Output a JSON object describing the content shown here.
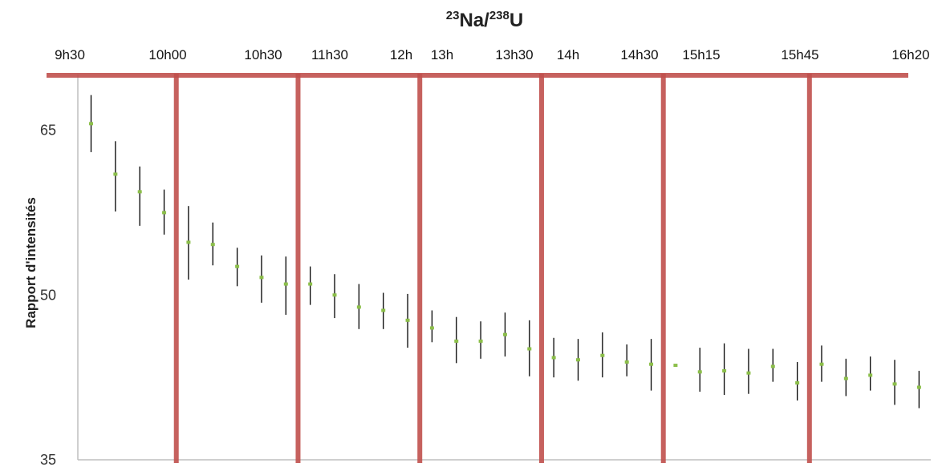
{
  "chart_data": {
    "type": "scatter",
    "title": {
      "sup1": "23",
      "el1": "Na/",
      "sup2": "238",
      "el2": "U"
    },
    "ylabel": "Rapport d'intensités",
    "xlabel": "",
    "ylim": [
      35,
      70
    ],
    "yticks": [
      35,
      50,
      65
    ],
    "top_ticks": [
      "9h30",
      "10h00",
      "10h30",
      "11h30",
      "12h",
      "13h",
      "13h30",
      "14h",
      "14h30",
      "15h15",
      "15h45",
      "16h20"
    ],
    "grid": false,
    "colors": {
      "points": "#8cbf4a",
      "errorbars": "#000000",
      "markers": "#c0504d",
      "axis": "#bfbfbf"
    },
    "points": [
      {
        "i": 1,
        "y": 65.6,
        "lo": 63.0,
        "hi": 68.2
      },
      {
        "i": 2,
        "y": 61.0,
        "lo": 57.6,
        "hi": 64.0
      },
      {
        "i": 3,
        "y": 59.4,
        "lo": 56.3,
        "hi": 61.7
      },
      {
        "i": 4,
        "y": 57.5,
        "lo": 55.5,
        "hi": 59.6
      },
      {
        "i": 5,
        "y": 54.8,
        "lo": 51.4,
        "hi": 58.1
      },
      {
        "i": 6,
        "y": 54.6,
        "lo": 52.7,
        "hi": 56.6
      },
      {
        "i": 7,
        "y": 52.6,
        "lo": 50.8,
        "hi": 54.3
      },
      {
        "i": 8,
        "y": 51.6,
        "lo": 49.3,
        "hi": 53.6
      },
      {
        "i": 9,
        "y": 51.0,
        "lo": 48.2,
        "hi": 53.5
      },
      {
        "i": 10,
        "y": 51.0,
        "lo": 49.1,
        "hi": 52.6
      },
      {
        "i": 11,
        "y": 50.0,
        "lo": 47.9,
        "hi": 51.9
      },
      {
        "i": 12,
        "y": 48.9,
        "lo": 46.9,
        "hi": 51.0
      },
      {
        "i": 13,
        "y": 48.6,
        "lo": 46.9,
        "hi": 50.2
      },
      {
        "i": 14,
        "y": 47.7,
        "lo": 45.2,
        "hi": 50.1
      },
      {
        "i": 15,
        "y": 47.0,
        "lo": 45.7,
        "hi": 48.6
      },
      {
        "i": 16,
        "y": 45.8,
        "lo": 43.8,
        "hi": 48.0
      },
      {
        "i": 17,
        "y": 45.8,
        "lo": 44.2,
        "hi": 47.6
      },
      {
        "i": 18,
        "y": 46.4,
        "lo": 44.4,
        "hi": 48.4
      },
      {
        "i": 19,
        "y": 45.1,
        "lo": 42.6,
        "hi": 47.7
      },
      {
        "i": 20,
        "y": 44.3,
        "lo": 42.5,
        "hi": 46.1
      },
      {
        "i": 21,
        "y": 44.1,
        "lo": 42.2,
        "hi": 46.0
      },
      {
        "i": 22,
        "y": 44.5,
        "lo": 42.5,
        "hi": 46.6
      },
      {
        "i": 23,
        "y": 43.9,
        "lo": 42.6,
        "hi": 45.5
      },
      {
        "i": 24,
        "y": 43.7,
        "lo": 41.3,
        "hi": 46.0
      },
      {
        "i": 25,
        "y": 43.6,
        "lo": 43.6,
        "hi": 43.6
      },
      {
        "i": 26,
        "y": 43.0,
        "lo": 41.2,
        "hi": 45.2
      },
      {
        "i": 27,
        "y": 43.1,
        "lo": 40.9,
        "hi": 45.6
      },
      {
        "i": 28,
        "y": 42.9,
        "lo": 41.0,
        "hi": 45.1
      },
      {
        "i": 29,
        "y": 43.5,
        "lo": 42.1,
        "hi": 45.1
      },
      {
        "i": 30,
        "y": 42.0,
        "lo": 40.4,
        "hi": 43.9
      },
      {
        "i": 31,
        "y": 43.7,
        "lo": 42.1,
        "hi": 45.4
      },
      {
        "i": 32,
        "y": 42.4,
        "lo": 40.8,
        "hi": 44.2
      },
      {
        "i": 33,
        "y": 42.7,
        "lo": 41.3,
        "hi": 44.4
      },
      {
        "i": 34,
        "y": 41.9,
        "lo": 40.0,
        "hi": 44.1
      },
      {
        "i": 35,
        "y": 41.6,
        "lo": 39.7,
        "hi": 43.1
      }
    ],
    "separators_after": [
      4,
      9,
      14,
      19,
      24,
      30
    ]
  }
}
